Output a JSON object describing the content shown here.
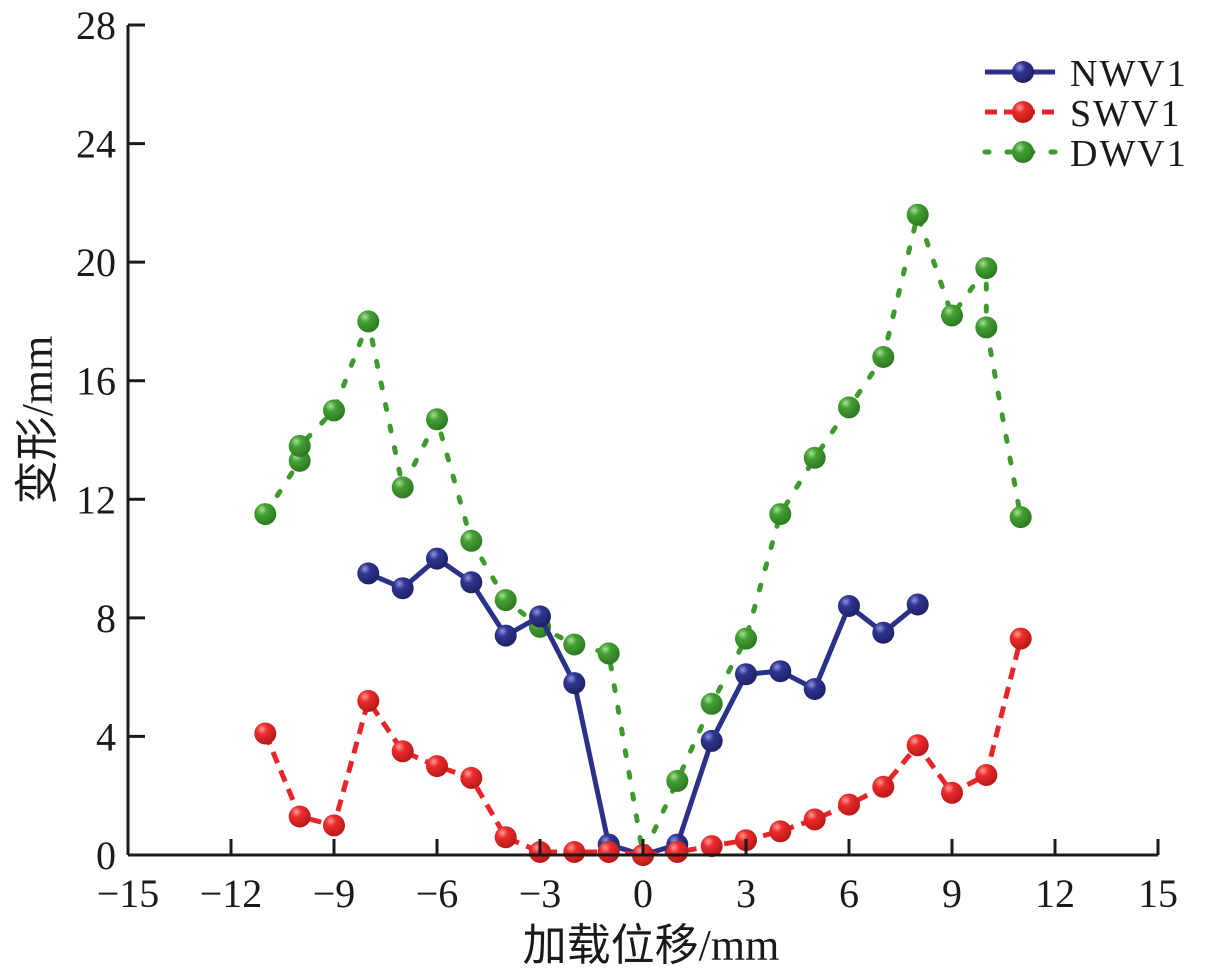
{
  "chart_data": {
    "type": "line",
    "title": "",
    "xlabel": "加载位移/mm",
    "ylabel": "变形/mm",
    "xlim": [
      -15,
      15
    ],
    "ylim": [
      0,
      28
    ],
    "xticks": [
      -15,
      -12,
      -9,
      -6,
      -3,
      0,
      3,
      6,
      9,
      12,
      15
    ],
    "xtick_labels": [
      "−15",
      "−12",
      "−9",
      "−6",
      "−3",
      "0",
      "3",
      "6",
      "9",
      "12",
      "15"
    ],
    "yticks": [
      0,
      4,
      8,
      12,
      16,
      20,
      24,
      28
    ],
    "ytick_labels": [
      "0",
      "4",
      "8",
      "12",
      "16",
      "20",
      "24",
      "28"
    ],
    "grid": false,
    "legend_position": "top-right",
    "series": [
      {
        "name": "NWV1",
        "color": "#2b3186",
        "line_style": "solid",
        "points": [
          [
            -8,
            9.5
          ],
          [
            -7,
            9.0
          ],
          [
            -6,
            10.0
          ],
          [
            -5,
            9.2
          ],
          [
            -4,
            7.4
          ],
          [
            -3,
            8.05
          ],
          [
            -2,
            5.8
          ],
          [
            -1,
            0.35
          ],
          [
            0,
            0.0
          ],
          [
            1,
            0.35
          ],
          [
            2,
            3.85
          ],
          [
            3,
            6.1
          ],
          [
            4,
            6.2
          ],
          [
            5,
            5.6
          ],
          [
            6,
            8.4
          ],
          [
            7,
            7.5
          ],
          [
            8,
            8.45
          ]
        ]
      },
      {
        "name": "SWV1",
        "color": "#e8262a",
        "line_style": "dashed",
        "points": [
          [
            -11,
            4.1
          ],
          [
            -10,
            1.3
          ],
          [
            -9,
            1.0
          ],
          [
            -8,
            5.2
          ],
          [
            -7,
            3.5
          ],
          [
            -6,
            3.0
          ],
          [
            -5,
            2.6
          ],
          [
            -4,
            0.6
          ],
          [
            -3,
            0.1
          ],
          [
            -2,
            0.1
          ],
          [
            -1,
            0.1
          ],
          [
            0,
            0.0
          ],
          [
            1,
            0.1
          ],
          [
            2,
            0.3
          ],
          [
            3,
            0.5
          ],
          [
            4,
            0.8
          ],
          [
            5,
            1.2
          ],
          [
            6,
            1.7
          ],
          [
            7,
            2.3
          ],
          [
            8,
            3.7
          ],
          [
            9,
            2.1
          ],
          [
            10,
            2.7
          ],
          [
            11,
            7.3
          ]
        ]
      },
      {
        "name": "DWV1",
        "color": "#3f9a2e",
        "line_style": "dotted",
        "points": [
          [
            -11,
            11.5
          ],
          [
            -10,
            13.3
          ],
          [
            -10,
            13.8
          ],
          [
            -9,
            15.0
          ],
          [
            -8,
            18.0
          ],
          [
            -7,
            12.4
          ],
          [
            -6,
            14.7
          ],
          [
            -5,
            10.6
          ],
          [
            -4,
            8.6
          ],
          [
            -3,
            7.7
          ],
          [
            -2,
            7.1
          ],
          [
            -1,
            6.8
          ],
          [
            0,
            0.0
          ],
          [
            1,
            2.5
          ],
          [
            2,
            5.1
          ],
          [
            3,
            7.3
          ],
          [
            4,
            11.5
          ],
          [
            5,
            13.4
          ],
          [
            6,
            15.1
          ],
          [
            7,
            16.8
          ],
          [
            8,
            21.6
          ],
          [
            9,
            18.2
          ],
          [
            10,
            19.8
          ],
          [
            10,
            17.8
          ],
          [
            11,
            11.4
          ]
        ]
      }
    ]
  }
}
